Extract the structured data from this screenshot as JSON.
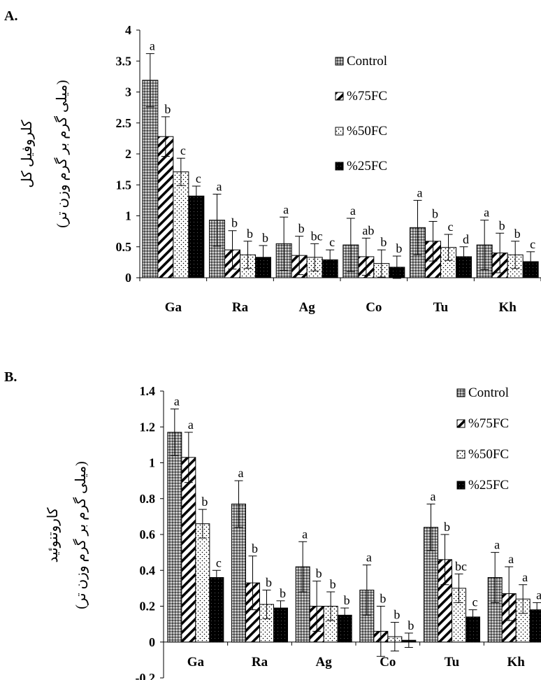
{
  "chart_data": [
    {
      "panel": "A.",
      "type": "bar",
      "ylabel": "کلروفیل کل",
      "ylabel_unit": "(میلی گرم بر گرم وزن تر)",
      "categories": [
        "Ga",
        "Ra",
        "Ag",
        "Co",
        "Tu",
        "Kh"
      ],
      "ylim": [
        0,
        4
      ],
      "yticks": [
        "0",
        "0.5",
        "1",
        "1.5",
        "2",
        "2.5",
        "3",
        "3.5",
        "4"
      ],
      "legend_position": "top-right",
      "series": [
        {
          "name": "Control",
          "pattern": "dots-dark",
          "values": [
            3.19,
            0.93,
            0.55,
            0.53,
            0.81,
            0.53
          ],
          "errors": [
            0.43,
            0.42,
            0.43,
            0.43,
            0.44,
            0.4
          ],
          "letters": [
            "a",
            "a",
            "a",
            "a",
            "a",
            "a"
          ]
        },
        {
          "name": "%75FC",
          "pattern": "diagonal",
          "values": [
            2.28,
            0.45,
            0.36,
            0.34,
            0.59,
            0.4
          ],
          "errors": [
            0.32,
            0.31,
            0.31,
            0.3,
            0.32,
            0.32
          ],
          "letters": [
            "b",
            "b",
            "b",
            "ab",
            "b",
            "b"
          ]
        },
        {
          "name": "%50FC",
          "pattern": "dots-light",
          "values": [
            1.71,
            0.37,
            0.33,
            0.23,
            0.49,
            0.37
          ],
          "errors": [
            0.22,
            0.22,
            0.22,
            0.22,
            0.21,
            0.22
          ],
          "letters": [
            "c",
            "b",
            "bc",
            "b",
            "c",
            "b"
          ]
        },
        {
          "name": "%25FC",
          "pattern": "solid",
          "values": [
            1.32,
            0.33,
            0.29,
            0.17,
            0.34,
            0.26
          ],
          "errors": [
            0.16,
            0.19,
            0.16,
            0.18,
            0.16,
            0.16
          ],
          "letters": [
            "c",
            "b",
            "c",
            "b",
            "d",
            "c"
          ]
        }
      ]
    },
    {
      "panel": "B.",
      "type": "bar",
      "ylabel": "کاروتنوئید",
      "ylabel_unit": "(میلی گرم بر گرم وزن تر)",
      "categories": [
        "Ga",
        "Ra",
        "Ag",
        "Co",
        "Tu",
        "Kh"
      ],
      "ylim": [
        -0.2,
        1.4
      ],
      "yticks": [
        "-0.2",
        "0",
        "0.2",
        "0.4",
        "0.6",
        "0.8",
        "1",
        "1.2",
        "1.4"
      ],
      "legend_position": "top-right",
      "series": [
        {
          "name": "Control",
          "pattern": "dots-dark",
          "values": [
            1.17,
            0.77,
            0.42,
            0.29,
            0.64,
            0.36
          ],
          "errors": [
            0.13,
            0.13,
            0.14,
            0.14,
            0.13,
            0.14
          ],
          "letters": [
            "a",
            "a",
            "a",
            "a",
            "a",
            "a"
          ]
        },
        {
          "name": "%75FC",
          "pattern": "diagonal",
          "values": [
            1.03,
            0.33,
            0.2,
            0.06,
            0.46,
            0.27
          ],
          "errors": [
            0.14,
            0.15,
            0.14,
            0.14,
            0.14,
            0.15
          ],
          "letters": [
            "a",
            "b",
            "b",
            "b",
            "b",
            "a"
          ]
        },
        {
          "name": "%50FC",
          "pattern": "dots-light",
          "values": [
            0.66,
            0.21,
            0.2,
            0.03,
            0.3,
            0.24
          ],
          "errors": [
            0.08,
            0.08,
            0.08,
            0.08,
            0.08,
            0.08
          ],
          "letters": [
            "b",
            "b",
            "b",
            "b",
            "bc",
            "a"
          ]
        },
        {
          "name": "%25FC",
          "pattern": "solid",
          "values": [
            0.36,
            0.19,
            0.15,
            0.01,
            0.14,
            0.18
          ],
          "errors": [
            0.04,
            0.04,
            0.04,
            0.04,
            0.04,
            0.04
          ],
          "letters": [
            "c",
            "b",
            "b",
            "b",
            "c",
            "a"
          ]
        }
      ]
    }
  ]
}
